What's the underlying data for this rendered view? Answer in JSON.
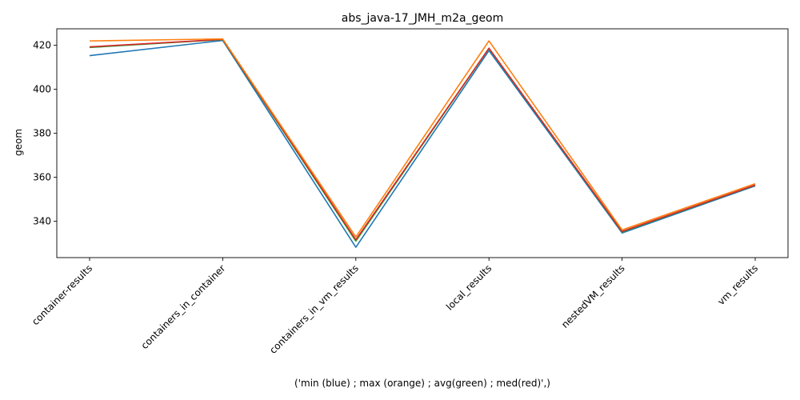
{
  "chart_data": {
    "type": "line",
    "title": "abs_java-17_JMH_m2a_geom",
    "xlabel": "('min (blue) ; max (orange) ; avg(green) ; med(red)',)",
    "ylabel": "geom",
    "categories": [
      "container-results",
      "containers_in_container",
      "containers_in_vm_results",
      "local_results",
      "nestedVM_results",
      "vm_results"
    ],
    "ylim": [
      323.5,
      427.5
    ],
    "yticks": [
      340,
      360,
      380,
      400,
      420
    ],
    "grid": false,
    "series": [
      {
        "color": "#1f77b4",
        "values": [
          415.3,
          422.2,
          328.2,
          417.6,
          334.7,
          356.1
        ]
      },
      {
        "color": "#2ca02c",
        "values": [
          419.0,
          422.6,
          331.0,
          418.6,
          335.2,
          356.4
        ]
      },
      {
        "color": "#d62728",
        "values": [
          419.3,
          422.7,
          331.6,
          418.7,
          335.4,
          356.5
        ]
      },
      {
        "color": "#ff7f0e",
        "values": [
          422.0,
          422.9,
          332.9,
          422.0,
          336.1,
          357.1
        ]
      }
    ]
  }
}
